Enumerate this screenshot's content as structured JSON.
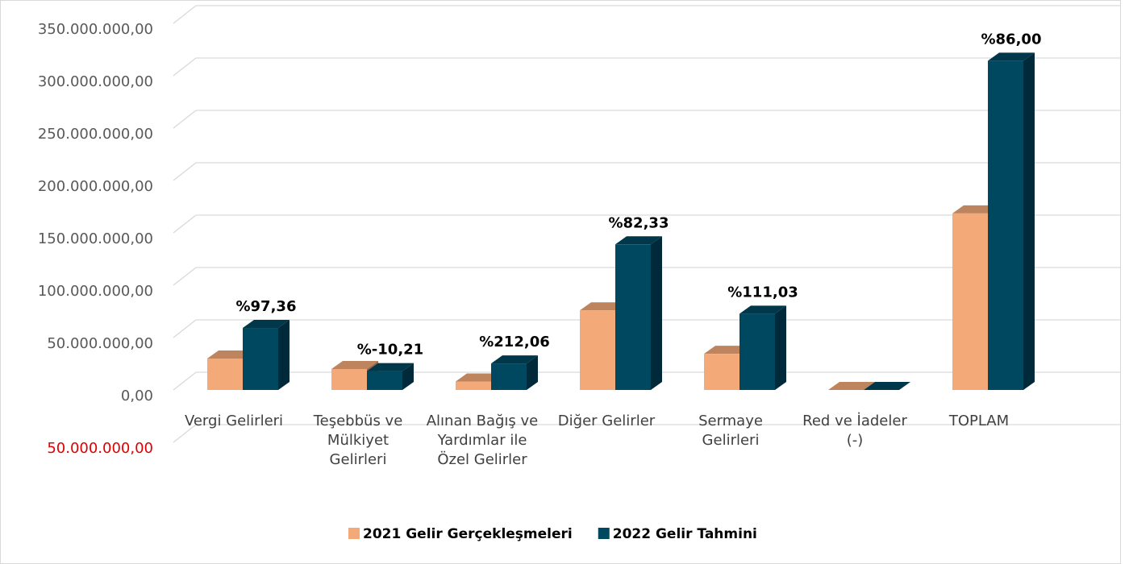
{
  "chart_data": {
    "type": "bar3d",
    "categories": [
      "Vergi Gelirleri",
      "Teşebbüs ve Mülkiyet Gelirleri",
      "Alınan Bağış ve Yardımlar ile Özel Gelirler",
      "Diğer Gelirler",
      "Sermaye Gelirleri",
      "Red ve İadeler (-)",
      "TOPLAM"
    ],
    "series": [
      {
        "name": "2021 Gelir Gerçekleşmeleri",
        "color": "#f4aa78",
        "values": [
          30000000,
          20000000,
          8100000,
          76000000,
          34500000,
          0,
          168600000
        ]
      },
      {
        "name": "2022 Gelir Tahmini",
        "color": "#004760",
        "values": [
          59200000,
          18000000,
          25300000,
          139000000,
          72800000,
          0,
          314300000
        ]
      }
    ],
    "change_labels": [
      "%97,36",
      "%-10,21",
      "%212,06",
      "%82,33",
      "%111,03",
      null,
      "%86,00"
    ],
    "ylim": [
      -50000000,
      350000000
    ],
    "yticks": [
      {
        "value": -50000000,
        "label": "50.000.000,00"
      },
      {
        "value": 0,
        "label": "0,00"
      },
      {
        "value": 50000000,
        "label": "50.000.000,00"
      },
      {
        "value": 100000000,
        "label": "100.000.000,00"
      },
      {
        "value": 150000000,
        "label": "150.000.000,00"
      },
      {
        "value": 200000000,
        "label": "200.000.000,00"
      },
      {
        "value": 250000000,
        "label": "250.000.000,00"
      },
      {
        "value": 300000000,
        "label": "300.000.000,00"
      },
      {
        "value": 350000000,
        "label": "350.000.000,00"
      }
    ],
    "negative_tick_color": "#e00000",
    "grid": true,
    "legend": "bottom"
  }
}
